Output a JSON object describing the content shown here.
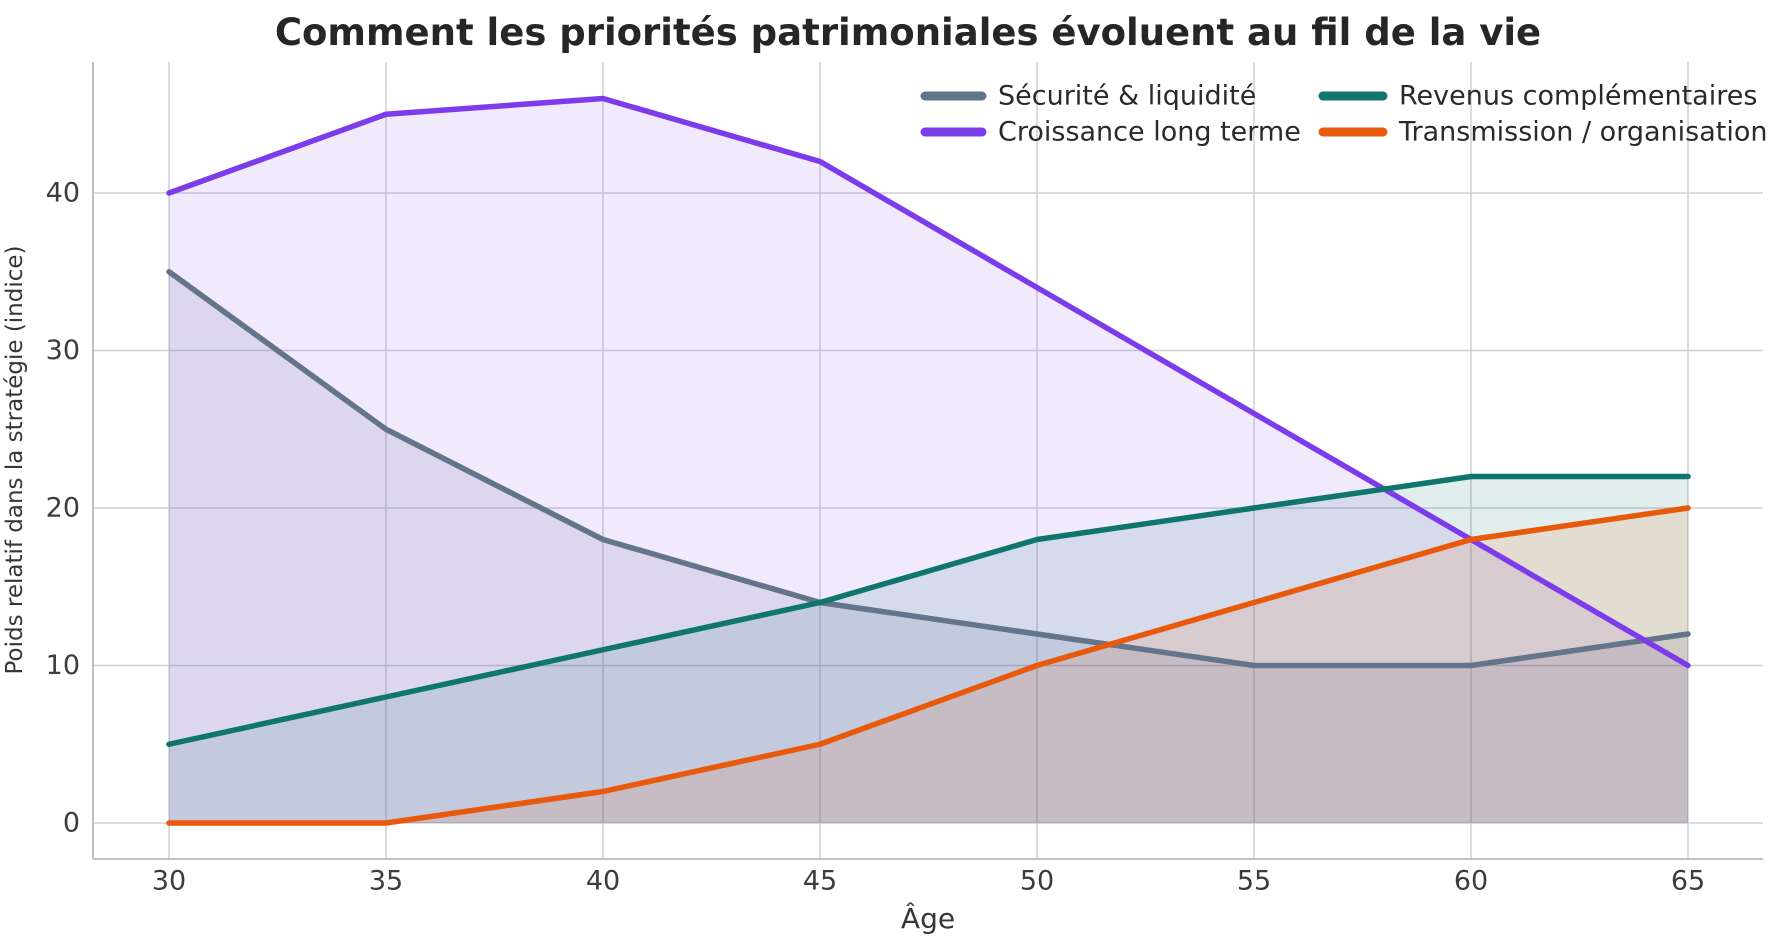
{
  "chart_data": {
    "type": "line",
    "title": "Comment les priorités patrimoniales évoluent au fil de la vie",
    "xlabel": "Âge",
    "ylabel": "Poids relatif dans la stratégie (indice)",
    "x": [
      30,
      35,
      40,
      45,
      50,
      55,
      60,
      65
    ],
    "xtick_labels": [
      "30",
      "35",
      "40",
      "45",
      "50",
      "55",
      "60",
      "65"
    ],
    "yticks": [
      0,
      10,
      20,
      30,
      40
    ],
    "ytick_labels": [
      "0",
      "10",
      "20",
      "30",
      "40"
    ],
    "xlim": [
      28.25,
      66.7
    ],
    "ylim": [
      -2.3,
      48.3
    ],
    "grid": true,
    "legend": {
      "position": "top-right-inside",
      "columns": 2,
      "frame": false
    },
    "series": [
      {
        "name": "Sécurité & liquidité",
        "color": "#64748B",
        "values": [
          35,
          25,
          18,
          14,
          12,
          10,
          10,
          12
        ],
        "area_fill": true
      },
      {
        "name": "Croissance long terme",
        "color": "#7D3CEC",
        "values": [
          40,
          45,
          46,
          42,
          34,
          26,
          18,
          10
        ],
        "area_fill": true
      },
      {
        "name": "Revenus complémentaires",
        "color": "#0F766E",
        "values": [
          5,
          8,
          11,
          14,
          18,
          20,
          22,
          22
        ],
        "area_fill": true
      },
      {
        "name": "Transmission / organisation",
        "color": "#E8590C",
        "values": [
          0,
          0,
          2,
          5,
          10,
          14,
          18,
          20
        ],
        "area_fill": true
      }
    ],
    "style_colors": {
      "grid": "#cdd0d6",
      "spine": "#b6b9be",
      "background": "#ffffff",
      "text": "#3c3c3c"
    }
  }
}
